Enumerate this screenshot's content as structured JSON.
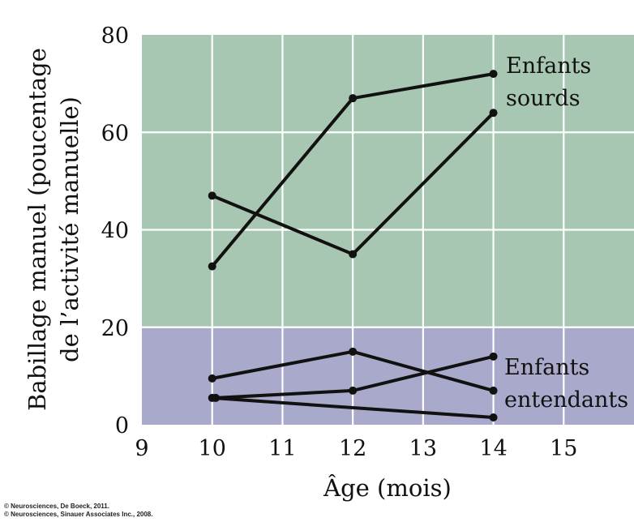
{
  "chart_data": {
    "type": "line",
    "title": "",
    "xlabel": "Âge (mois)",
    "ylabel_lines": [
      "Babillage manuel (poucentage",
      "de l’activité manuelle)"
    ],
    "xlim": [
      9,
      16
    ],
    "ylim": [
      0,
      80
    ],
    "x_ticks": [
      9,
      10,
      11,
      12,
      13,
      14,
      15
    ],
    "y_ticks": [
      0,
      20,
      40,
      60,
      80
    ],
    "grid": true,
    "bands": [
      {
        "name": "deaf-zone",
        "y_from": 20,
        "y_to": 80,
        "color": "#a7c7b3"
      },
      {
        "name": "hearing-zone",
        "y_from": 0,
        "y_to": 20,
        "color": "#a9a9cb"
      }
    ],
    "series": [
      {
        "name": "Enfants sourds A",
        "group": "sourds",
        "x": [
          10,
          12,
          14
        ],
        "y": [
          47,
          35,
          64
        ]
      },
      {
        "name": "Enfants sourds B",
        "group": "sourds",
        "x": [
          10,
          12,
          14
        ],
        "y": [
          32.5,
          67,
          72
        ]
      },
      {
        "name": "Enfants entendants A",
        "group": "entendants",
        "x": [
          10,
          12,
          14
        ],
        "y": [
          9.5,
          15,
          7
        ]
      },
      {
        "name": "Enfants entendants B",
        "group": "entendants",
        "x": [
          10.05,
          12,
          14
        ],
        "y": [
          5.5,
          7,
          14
        ]
      },
      {
        "name": "Enfants entendants C",
        "group": "entendants",
        "x": [
          10,
          14
        ],
        "y": [
          5.5,
          1.5
        ]
      }
    ],
    "annotations": [
      {
        "group": "sourds",
        "lines": [
          "Enfants",
          "sourds"
        ]
      },
      {
        "group": "entendants",
        "lines": [
          "Enfants",
          "entendants"
        ]
      }
    ]
  },
  "credits": [
    "© Neurosciences, De Boeck, 2011.",
    "© Neurosciences, Sinauer Associates Inc., 2008."
  ]
}
